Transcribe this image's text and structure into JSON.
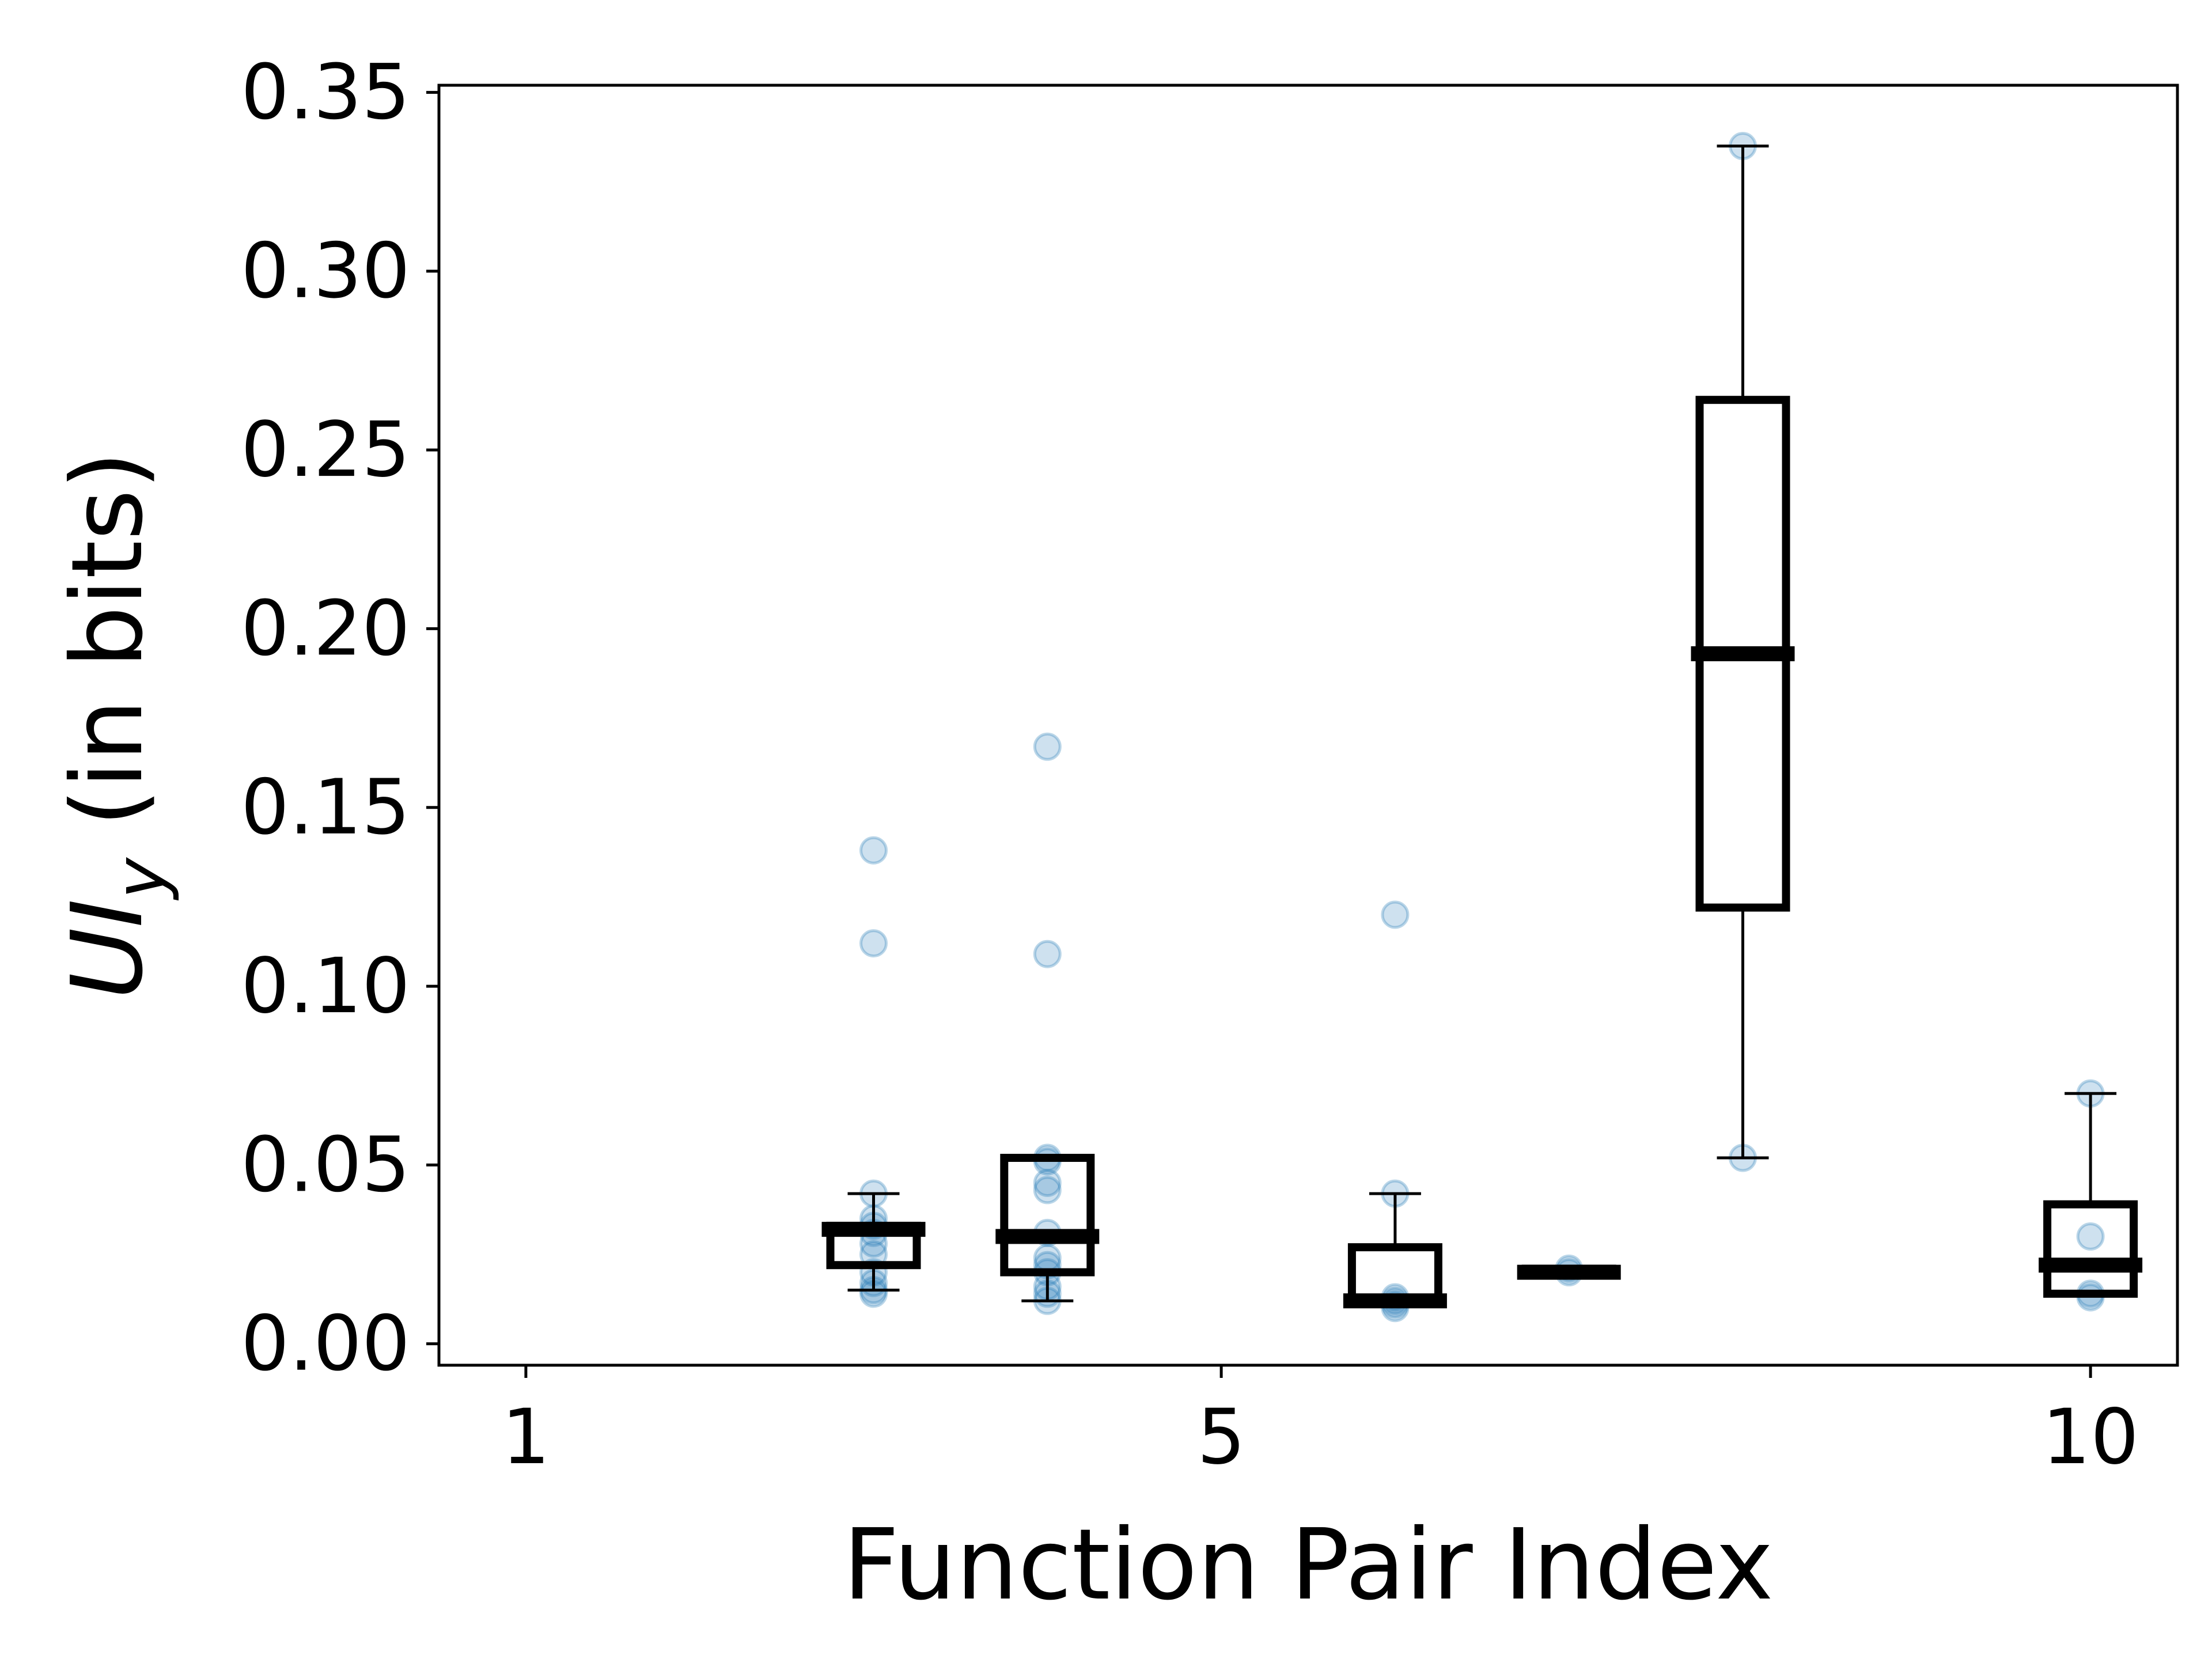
{
  "chart_data": {
    "type": "box",
    "xlabel": "Function Pair Index",
    "ylabel": {
      "main": "UI",
      "subscript": "y",
      "suffix": " (in bits)"
    },
    "xlim": [
      0.5,
      10.5
    ],
    "ylim": [
      -0.006,
      0.352
    ],
    "xticks": [
      1,
      5,
      10
    ],
    "xtick_labels": [
      "1",
      "5",
      "10"
    ],
    "yticks": [
      0.0,
      0.05,
      0.1,
      0.15,
      0.2,
      0.25,
      0.3,
      0.35
    ],
    "ytick_labels": [
      "0.00",
      "0.05",
      "0.10",
      "0.15",
      "0.20",
      "0.25",
      "0.30",
      "0.35"
    ],
    "grid": false,
    "point_color": "#1f77b4",
    "box_color": "#000000",
    "boxes": [
      {
        "x": 3,
        "whislo": 0.015,
        "q1": 0.022,
        "med": 0.032,
        "q3": 0.033,
        "whishi": 0.042
      },
      {
        "x": 4,
        "whislo": 0.012,
        "q1": 0.02,
        "med": 0.03,
        "q3": 0.052,
        "whishi": 0.052
      },
      {
        "x": 6,
        "whislo": 0.012,
        "q1": 0.012,
        "med": 0.012,
        "q3": 0.027,
        "whishi": 0.042
      },
      {
        "x": 7,
        "whislo": 0.02,
        "q1": 0.02,
        "med": 0.02,
        "q3": 0.021,
        "whishi": 0.021
      },
      {
        "x": 8,
        "whislo": 0.052,
        "q1": 0.122,
        "med": 0.193,
        "q3": 0.264,
        "whishi": 0.335
      },
      {
        "x": 10,
        "whislo": 0.014,
        "q1": 0.014,
        "med": 0.022,
        "q3": 0.039,
        "whishi": 0.07
      }
    ],
    "points": [
      {
        "x": 3,
        "values": [
          0.138,
          0.112,
          0.042,
          0.035,
          0.033,
          0.031,
          0.028,
          0.025,
          0.02,
          0.017,
          0.015,
          0.014
        ]
      },
      {
        "x": 4,
        "values": [
          0.167,
          0.109,
          0.052,
          0.051,
          0.045,
          0.043,
          0.031,
          0.024,
          0.022,
          0.02,
          0.016,
          0.014,
          0.012
        ]
      },
      {
        "x": 6,
        "values": [
          0.12,
          0.042,
          0.013,
          0.012,
          0.011,
          0.01
        ]
      },
      {
        "x": 7,
        "values": [
          0.021,
          0.02
        ]
      },
      {
        "x": 8,
        "values": [
          0.335,
          0.052
        ]
      },
      {
        "x": 10,
        "values": [
          0.07,
          0.03,
          0.014,
          0.013
        ]
      }
    ]
  }
}
